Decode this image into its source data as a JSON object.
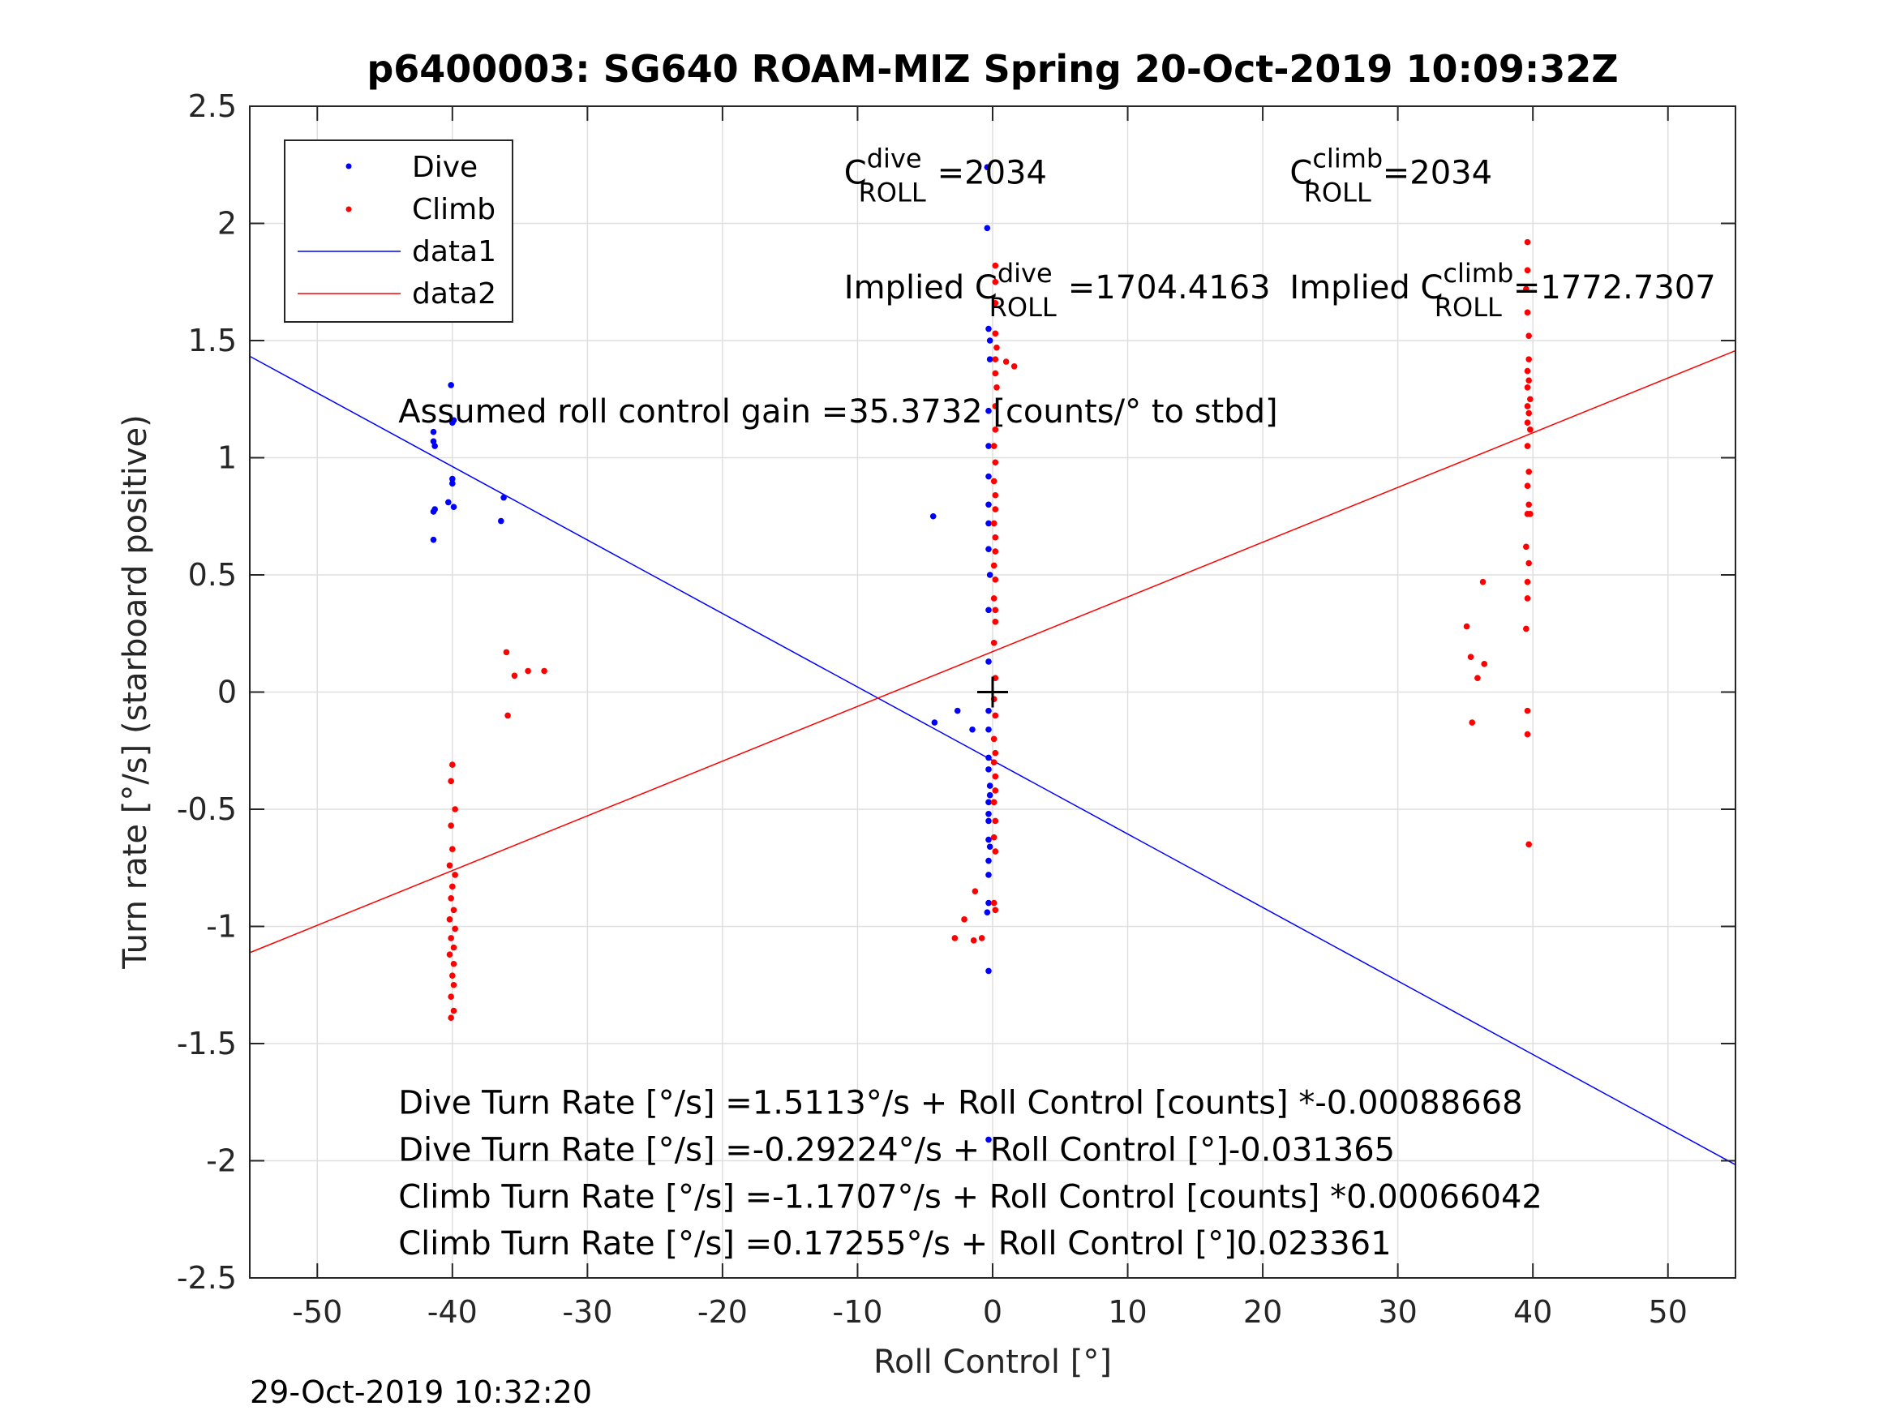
{
  "chart_data": {
    "type": "scatter",
    "title": "p6400003: SG640 ROAM-MIZ Spring 20-Oct-2019 10:09:32Z",
    "xlabel": "Roll Control [°]",
    "ylabel": "Turn rate [°/s] (starboard positive)",
    "xlim": [
      -55,
      55
    ],
    "ylim": [
      -2.5,
      2.5
    ],
    "grid": true,
    "legend_position": "top-left",
    "x_ticks": [
      {
        "v": -50,
        "label": "-50"
      },
      {
        "v": -40,
        "label": "-40"
      },
      {
        "v": -30,
        "label": "-30"
      },
      {
        "v": -20,
        "label": "-20"
      },
      {
        "v": -10,
        "label": "-10"
      },
      {
        "v": 0,
        "label": "0"
      },
      {
        "v": 10,
        "label": "10"
      },
      {
        "v": 20,
        "label": "20"
      },
      {
        "v": 30,
        "label": "30"
      },
      {
        "v": 40,
        "label": "40"
      },
      {
        "v": 50,
        "label": "50"
      }
    ],
    "y_ticks": [
      {
        "v": 2.5,
        "label": "2.5"
      },
      {
        "v": 2,
        "label": "2"
      },
      {
        "v": 1.5,
        "label": "1.5"
      },
      {
        "v": 1,
        "label": "1"
      },
      {
        "v": 0.5,
        "label": "0.5"
      },
      {
        "v": 0,
        "label": "0"
      },
      {
        "v": -0.5,
        "label": "-0.5"
      },
      {
        "v": -1,
        "label": "-1"
      },
      {
        "v": -1.5,
        "label": "-1.5"
      },
      {
        "v": -2,
        "label": "-2"
      },
      {
        "v": -2.5,
        "label": "-2.5"
      }
    ],
    "series": [
      {
        "name": "Dive",
        "kind": "points",
        "color": "#0000ff",
        "points": [
          [
            -40.1,
            1.31
          ],
          [
            -39.9,
            1.16
          ],
          [
            -40.0,
            1.15
          ],
          [
            -41.4,
            1.11
          ],
          [
            -41.4,
            1.07
          ],
          [
            -41.3,
            1.05
          ],
          [
            -40.0,
            0.91
          ],
          [
            -40.0,
            0.89
          ],
          [
            -40.3,
            0.81
          ],
          [
            -39.9,
            0.79
          ],
          [
            -41.3,
            0.78
          ],
          [
            -41.4,
            0.77
          ],
          [
            -36.2,
            0.83
          ],
          [
            -36.4,
            0.73
          ],
          [
            -41.4,
            0.65
          ],
          [
            -0.4,
            2.24
          ],
          [
            -0.4,
            1.98
          ],
          [
            -0.3,
            1.55
          ],
          [
            -0.2,
            1.5
          ],
          [
            -0.2,
            1.42
          ],
          [
            -0.3,
            1.2
          ],
          [
            -0.3,
            1.05
          ],
          [
            -0.3,
            0.92
          ],
          [
            -0.3,
            0.8
          ],
          [
            -0.3,
            0.72
          ],
          [
            -0.3,
            0.61
          ],
          [
            -0.2,
            0.5
          ],
          [
            -0.3,
            0.35
          ],
          [
            -0.3,
            0.13
          ],
          [
            -4.4,
            0.75
          ],
          [
            -0.3,
            -0.08
          ],
          [
            -0.3,
            -0.16
          ],
          [
            -0.3,
            -0.28
          ],
          [
            -0.3,
            -0.33
          ],
          [
            -0.2,
            -0.4
          ],
          [
            -0.2,
            -0.44
          ],
          [
            -0.3,
            -0.47
          ],
          [
            -0.3,
            -0.52
          ],
          [
            -0.3,
            -0.55
          ],
          [
            -0.3,
            -0.63
          ],
          [
            -0.2,
            -0.66
          ],
          [
            -0.3,
            -0.72
          ],
          [
            -0.3,
            -0.78
          ],
          [
            -0.3,
            -0.9
          ],
          [
            -0.4,
            -0.94
          ],
          [
            -0.3,
            -1.19
          ],
          [
            -0.3,
            -1.91
          ],
          [
            -4.3,
            -0.13
          ],
          [
            -2.6,
            -0.08
          ],
          [
            -1.5,
            -0.16
          ]
        ]
      },
      {
        "name": "Climb",
        "kind": "points",
        "color": "#ff0000",
        "points": [
          [
            0.2,
            1.82
          ],
          [
            0.2,
            1.75
          ],
          [
            0.2,
            1.66
          ],
          [
            0.2,
            1.53
          ],
          [
            0.3,
            1.47
          ],
          [
            0.2,
            1.42
          ],
          [
            0.2,
            1.36
          ],
          [
            0.3,
            1.3
          ],
          [
            0.2,
            1.22
          ],
          [
            0.2,
            1.12
          ],
          [
            0.1,
            1.05
          ],
          [
            0.2,
            0.98
          ],
          [
            0.1,
            0.9
          ],
          [
            0.2,
            0.84
          ],
          [
            0.2,
            0.78
          ],
          [
            0.1,
            0.72
          ],
          [
            0.2,
            0.66
          ],
          [
            0.2,
            0.6
          ],
          [
            0.1,
            0.54
          ],
          [
            0.2,
            0.48
          ],
          [
            0.1,
            0.4
          ],
          [
            0.2,
            0.35
          ],
          [
            0.2,
            0.3
          ],
          [
            0.1,
            0.21
          ],
          [
            0.2,
            0.06
          ],
          [
            0.1,
            -0.03
          ],
          [
            0.2,
            -0.1
          ],
          [
            0.1,
            -0.2
          ],
          [
            0.2,
            -0.26
          ],
          [
            0.1,
            -0.3
          ],
          [
            0.2,
            -0.36
          ],
          [
            0.2,
            -0.42
          ],
          [
            0.1,
            -0.47
          ],
          [
            0.2,
            -0.55
          ],
          [
            0.1,
            -0.62
          ],
          [
            0.2,
            -0.68
          ],
          [
            0.1,
            -0.9
          ],
          [
            0.2,
            -0.93
          ],
          [
            1.0,
            1.41
          ],
          [
            1.6,
            1.39
          ],
          [
            -2.8,
            -1.05
          ],
          [
            -2.1,
            -0.97
          ],
          [
            -1.3,
            -0.85
          ],
          [
            -1.4,
            -1.06
          ],
          [
            -0.8,
            -1.05
          ],
          [
            -36.0,
            0.17
          ],
          [
            -35.4,
            0.07
          ],
          [
            -34.4,
            0.09
          ],
          [
            -33.2,
            0.09
          ],
          [
            -35.9,
            -0.1
          ],
          [
            -40.0,
            -0.31
          ],
          [
            -40.1,
            -0.38
          ],
          [
            -39.8,
            -0.5
          ],
          [
            -40.1,
            -0.57
          ],
          [
            -40.0,
            -0.67
          ],
          [
            -40.2,
            -0.74
          ],
          [
            -39.8,
            -0.78
          ],
          [
            -40.0,
            -0.83
          ],
          [
            -40.1,
            -0.88
          ],
          [
            -39.9,
            -0.93
          ],
          [
            -40.2,
            -0.97
          ],
          [
            -39.8,
            -1.01
          ],
          [
            -40.1,
            -1.05
          ],
          [
            -39.9,
            -1.09
          ],
          [
            -40.2,
            -1.12
          ],
          [
            -39.9,
            -1.16
          ],
          [
            -40.0,
            -1.21
          ],
          [
            -39.9,
            -1.25
          ],
          [
            -40.1,
            -1.3
          ],
          [
            -39.9,
            -1.36
          ],
          [
            -40.1,
            -1.39
          ],
          [
            39.6,
            1.92
          ],
          [
            39.6,
            1.8
          ],
          [
            39.5,
            1.72
          ],
          [
            39.6,
            1.62
          ],
          [
            39.7,
            1.52
          ],
          [
            39.7,
            1.42
          ],
          [
            39.6,
            1.37
          ],
          [
            39.7,
            1.33
          ],
          [
            39.6,
            1.3
          ],
          [
            39.8,
            1.25
          ],
          [
            39.6,
            1.22
          ],
          [
            39.7,
            1.19
          ],
          [
            39.6,
            1.15
          ],
          [
            39.8,
            1.12
          ],
          [
            39.6,
            1.05
          ],
          [
            39.7,
            0.94
          ],
          [
            39.6,
            0.88
          ],
          [
            39.7,
            0.8
          ],
          [
            39.6,
            0.76
          ],
          [
            39.8,
            0.76
          ],
          [
            39.5,
            0.62
          ],
          [
            39.7,
            0.55
          ],
          [
            39.6,
            0.47
          ],
          [
            39.6,
            0.4
          ],
          [
            39.5,
            0.27
          ],
          [
            39.6,
            -0.08
          ],
          [
            39.6,
            -0.18
          ],
          [
            39.7,
            -0.65
          ],
          [
            35.1,
            0.28
          ],
          [
            35.4,
            0.15
          ],
          [
            36.4,
            0.12
          ],
          [
            35.9,
            0.06
          ],
          [
            35.5,
            -0.13
          ],
          [
            36.3,
            0.47
          ]
        ]
      },
      {
        "name": "data1",
        "kind": "line",
        "color": "#0000ff",
        "points": [
          [
            -55,
            1.433
          ],
          [
            55,
            -2.017
          ]
        ]
      },
      {
        "name": "data2",
        "kind": "line",
        "color": "#ff0000",
        "points": [
          [
            -55,
            -1.112
          ],
          [
            55,
            1.457
          ]
        ]
      }
    ],
    "marker": {
      "x": 0,
      "y": 0,
      "symbol": "+"
    },
    "annotations": [
      {
        "id": "c-dive",
        "x": -11,
        "y": 2.17,
        "label": "C",
        "sup": "dive",
        "sub": "ROLL",
        "value": "=2034"
      },
      {
        "id": "c-climb",
        "x": 22,
        "y": 2.17,
        "label": "C",
        "sup": "climb",
        "sub": "ROLL",
        "value": "=2034"
      },
      {
        "id": "implied-dive",
        "x": -11,
        "y": 1.68,
        "prefix": "Implied ",
        "label": "C",
        "sup": "dive",
        "sub": "ROLL",
        "value": "=1704.4163"
      },
      {
        "id": "implied-climb",
        "x": 22,
        "y": 1.68,
        "prefix": "Implied ",
        "label": "C",
        "sup": "climb",
        "sub": "ROLL",
        "value": "=1772.7307"
      },
      {
        "id": "gain",
        "x": -44,
        "y": 1.15,
        "text": "Assumed roll control gain =35.3732 [counts/° to stbd]"
      },
      {
        "id": "eq1",
        "x": -44,
        "y": -1.8,
        "text": "Dive Turn Rate [°/s] =1.5113°/s + Roll Control [counts] *-0.00088668"
      },
      {
        "id": "eq2",
        "x": -44,
        "y": -2.0,
        "text": "Dive Turn Rate [°/s] =-0.29224°/s + Roll Control [°]-0.031365"
      },
      {
        "id": "eq3",
        "x": -44,
        "y": -2.2,
        "text": "Climb Turn Rate [°/s] =-1.1707°/s + Roll Control [counts] *0.00066042"
      },
      {
        "id": "eq4",
        "x": -44,
        "y": -2.4,
        "text": "Climb Turn Rate [°/s] =0.17255°/s + Roll Control [°]0.023361"
      }
    ]
  },
  "footer": "29-Oct-2019 10:32:20"
}
